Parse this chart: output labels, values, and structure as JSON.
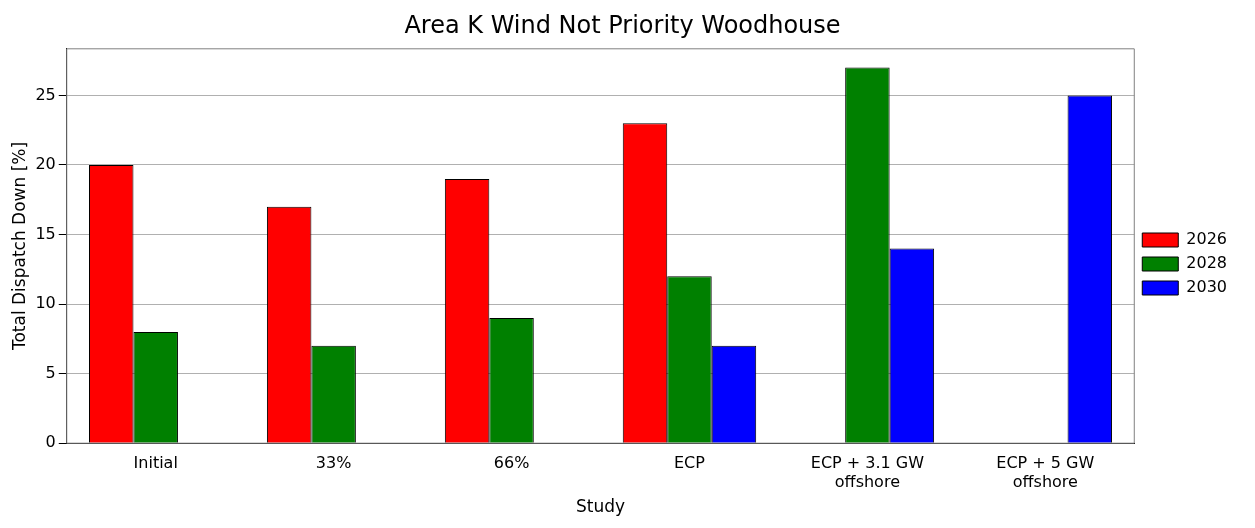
{
  "chart_data": {
    "type": "bar",
    "title": "Area K Wind Not Priority Woodhouse",
    "xlabel": "Study",
    "ylabel": "Total Dispatch Down [%]",
    "categories": [
      "Initial",
      "33%",
      "66%",
      "ECP",
      "ECP + 3.1 GW\noffshore",
      "ECP + 5 GW\noffshore"
    ],
    "series": [
      {
        "name": "2026",
        "color": "#ff0000",
        "values": [
          20,
          17,
          19,
          23,
          null,
          null
        ]
      },
      {
        "name": "2028",
        "color": "#008000",
        "values": [
          8,
          7,
          9,
          12,
          27,
          null
        ]
      },
      {
        "name": "2030",
        "color": "#0000ff",
        "values": [
          null,
          null,
          null,
          7,
          14,
          25
        ]
      }
    ],
    "ylim": [
      0,
      28.35
    ],
    "yticks": [
      0,
      5,
      10,
      15,
      20,
      25
    ],
    "grid": "y",
    "legend": "right"
  }
}
